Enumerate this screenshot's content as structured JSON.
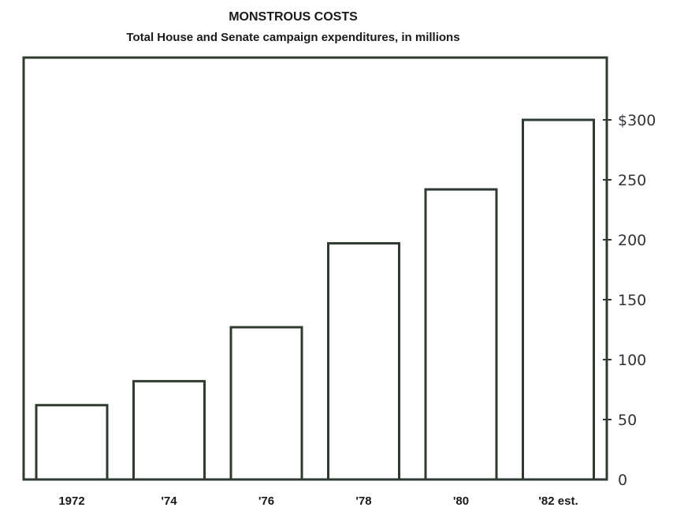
{
  "chart_data": {
    "type": "bar",
    "title": "MONSTROUS COSTS",
    "subtitle": "Total House and Senate campaign expenditures, in millions",
    "categories": [
      "1972",
      "'74",
      "'76",
      "'78",
      "'80",
      "'82 est."
    ],
    "values": [
      62,
      82,
      127,
      197,
      242,
      300
    ],
    "ylim": [
      0,
      300
    ],
    "y_ticks": [
      0,
      50,
      100,
      150,
      200,
      250,
      300
    ],
    "y_tick_labels": [
      "0",
      "50",
      "100",
      "150",
      "200",
      "250",
      "$300"
    ],
    "y_axis_side": "right",
    "xlabel": "",
    "ylabel": "",
    "grid": false,
    "bar_fill": "#ffffff",
    "bar_stroke": "#2f3a30",
    "frame_color": "#2f3a30"
  }
}
